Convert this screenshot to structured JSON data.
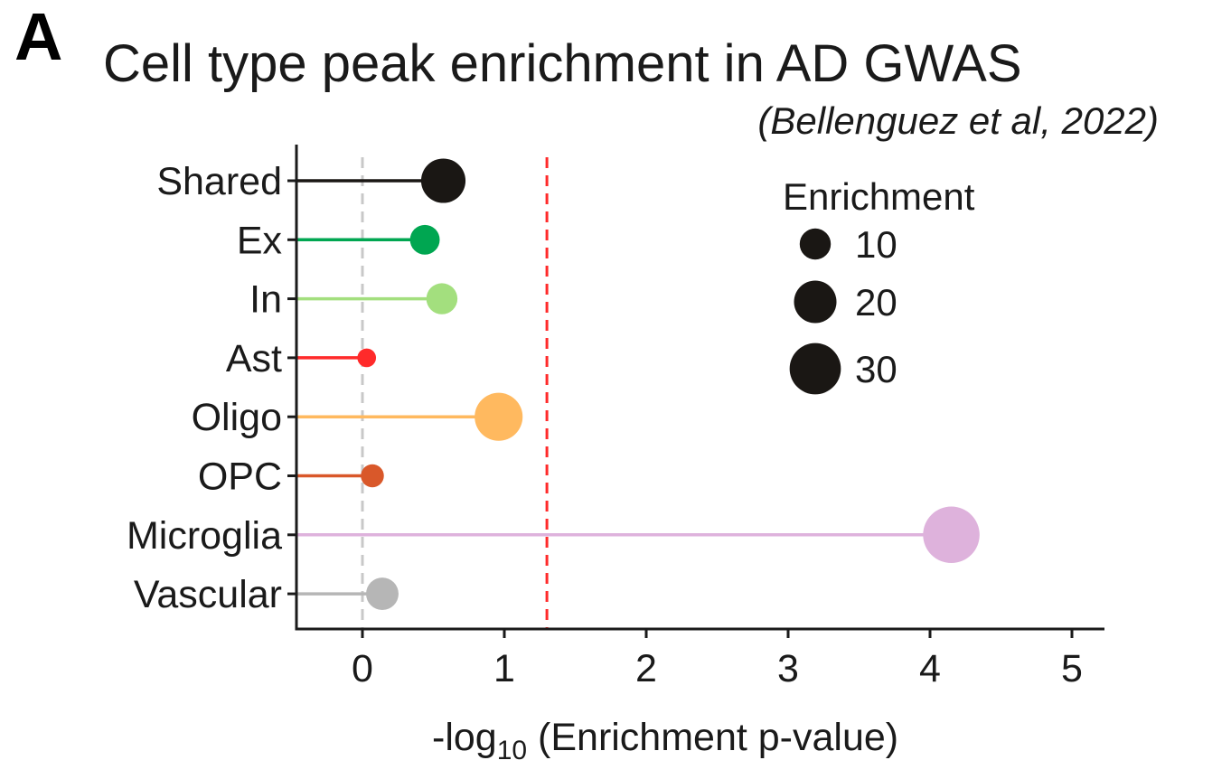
{
  "panel_letter": "A",
  "colors": {
    "axis": "#1a1a1a",
    "zero_line": "#c8c8c8",
    "threshold_line": "#ff2a2a",
    "legend_dot": "#1a1714"
  },
  "chart_data": {
    "type": "lollipop",
    "title": "Cell type peak enrichment in AD GWAS",
    "subtitle": "(Bellenguez et al, 2022)",
    "xlabel_main": "-log",
    "xlabel_sub": "10",
    "xlabel_rest": " (Enrichment p-value)",
    "xlim": [
      -0.46,
      5.22
    ],
    "xticks": [
      0,
      1,
      2,
      3,
      4,
      5
    ],
    "reference_line": 0,
    "threshold": 1.3,
    "categories": [
      "Shared",
      "Ex",
      "In",
      "Ast",
      "Oligo",
      "OPC",
      "Microglia",
      "Vascular"
    ],
    "values": [
      0.57,
      0.44,
      0.56,
      0.03,
      0.96,
      0.07,
      4.15,
      0.14
    ],
    "enrichment": [
      22,
      9,
      10,
      3,
      26,
      5,
      37,
      11
    ],
    "colors": [
      "#1a1714",
      "#00a651",
      "#a3df7e",
      "#ff2a2a",
      "#ffb95f",
      "#d9582a",
      "#deb2dc",
      "#b6b6b6"
    ],
    "legend": {
      "title": "Enrichment",
      "sizes": [
        10,
        20,
        30
      ],
      "labels": [
        "10",
        "20",
        "30"
      ]
    }
  }
}
